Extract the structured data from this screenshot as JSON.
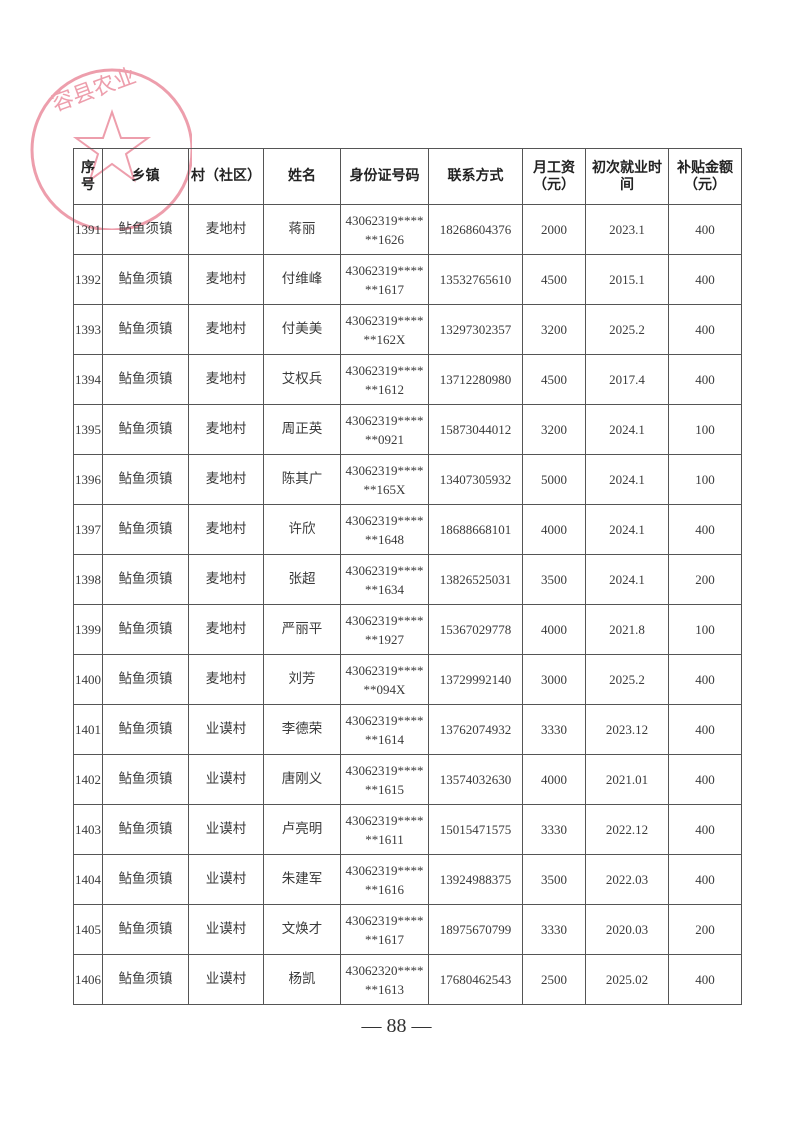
{
  "seal": {
    "text": "容县农业",
    "color": "#e0506a"
  },
  "table": {
    "headers": [
      "序号",
      "乡镇",
      "村（社区）",
      "姓名",
      "身份证号码",
      "联系方式",
      "月工资（元）",
      "初次就业时间",
      "补贴金额（元）"
    ],
    "rows": [
      [
        "1391",
        "鲇鱼须镇",
        "麦地村",
        "蒋丽",
        "43062319******1626",
        "18268604376",
        "2000",
        "2023.1",
        "400"
      ],
      [
        "1392",
        "鲇鱼须镇",
        "麦地村",
        "付维峰",
        "43062319******1617",
        "13532765610",
        "4500",
        "2015.1",
        "400"
      ],
      [
        "1393",
        "鲇鱼须镇",
        "麦地村",
        "付美美",
        "43062319******162X",
        "13297302357",
        "3200",
        "2025.2",
        "400"
      ],
      [
        "1394",
        "鲇鱼须镇",
        "麦地村",
        "艾权兵",
        "43062319******1612",
        "13712280980",
        "4500",
        "2017.4",
        "400"
      ],
      [
        "1395",
        "鲇鱼须镇",
        "麦地村",
        "周正英",
        "43062319******0921",
        "15873044012",
        "3200",
        "2024.1",
        "100"
      ],
      [
        "1396",
        "鲇鱼须镇",
        "麦地村",
        "陈其广",
        "43062319******165X",
        "13407305932",
        "5000",
        "2024.1",
        "100"
      ],
      [
        "1397",
        "鲇鱼须镇",
        "麦地村",
        "许欣",
        "43062319******1648",
        "18688668101",
        "4000",
        "2024.1",
        "400"
      ],
      [
        "1398",
        "鲇鱼须镇",
        "麦地村",
        "张超",
        "43062319******1634",
        "13826525031",
        "3500",
        "2024.1",
        "200"
      ],
      [
        "1399",
        "鲇鱼须镇",
        "麦地村",
        "严丽平",
        "43062319******1927",
        "15367029778",
        "4000",
        "2021.8",
        "100"
      ],
      [
        "1400",
        "鲇鱼须镇",
        "麦地村",
        "刘芳",
        "43062319******094X",
        "13729992140",
        "3000",
        "2025.2",
        "400"
      ],
      [
        "1401",
        "鲇鱼须镇",
        "业谟村",
        "李德荣",
        "43062319******1614",
        "13762074932",
        "3330",
        "2023.12",
        "400"
      ],
      [
        "1402",
        "鲇鱼须镇",
        "业谟村",
        "唐刚义",
        "43062319******1615",
        "13574032630",
        "4000",
        "2021.01",
        "400"
      ],
      [
        "1403",
        "鲇鱼须镇",
        "业谟村",
        "卢亮明",
        "43062319******1611",
        "15015471575",
        "3330",
        "2022.12",
        "400"
      ],
      [
        "1404",
        "鲇鱼须镇",
        "业谟村",
        "朱建军",
        "43062319******1616",
        "13924988375",
        "3500",
        "2022.03",
        "400"
      ],
      [
        "1405",
        "鲇鱼须镇",
        "业谟村",
        "文焕才",
        "43062319******1617",
        "18975670799",
        "3330",
        "2020.03",
        "200"
      ],
      [
        "1406",
        "鲇鱼须镇",
        "业谟村",
        "杨凯",
        "43062320******1613",
        "17680462543",
        "2500",
        "2025.02",
        "400"
      ]
    ]
  },
  "page_number": "— 88 —"
}
